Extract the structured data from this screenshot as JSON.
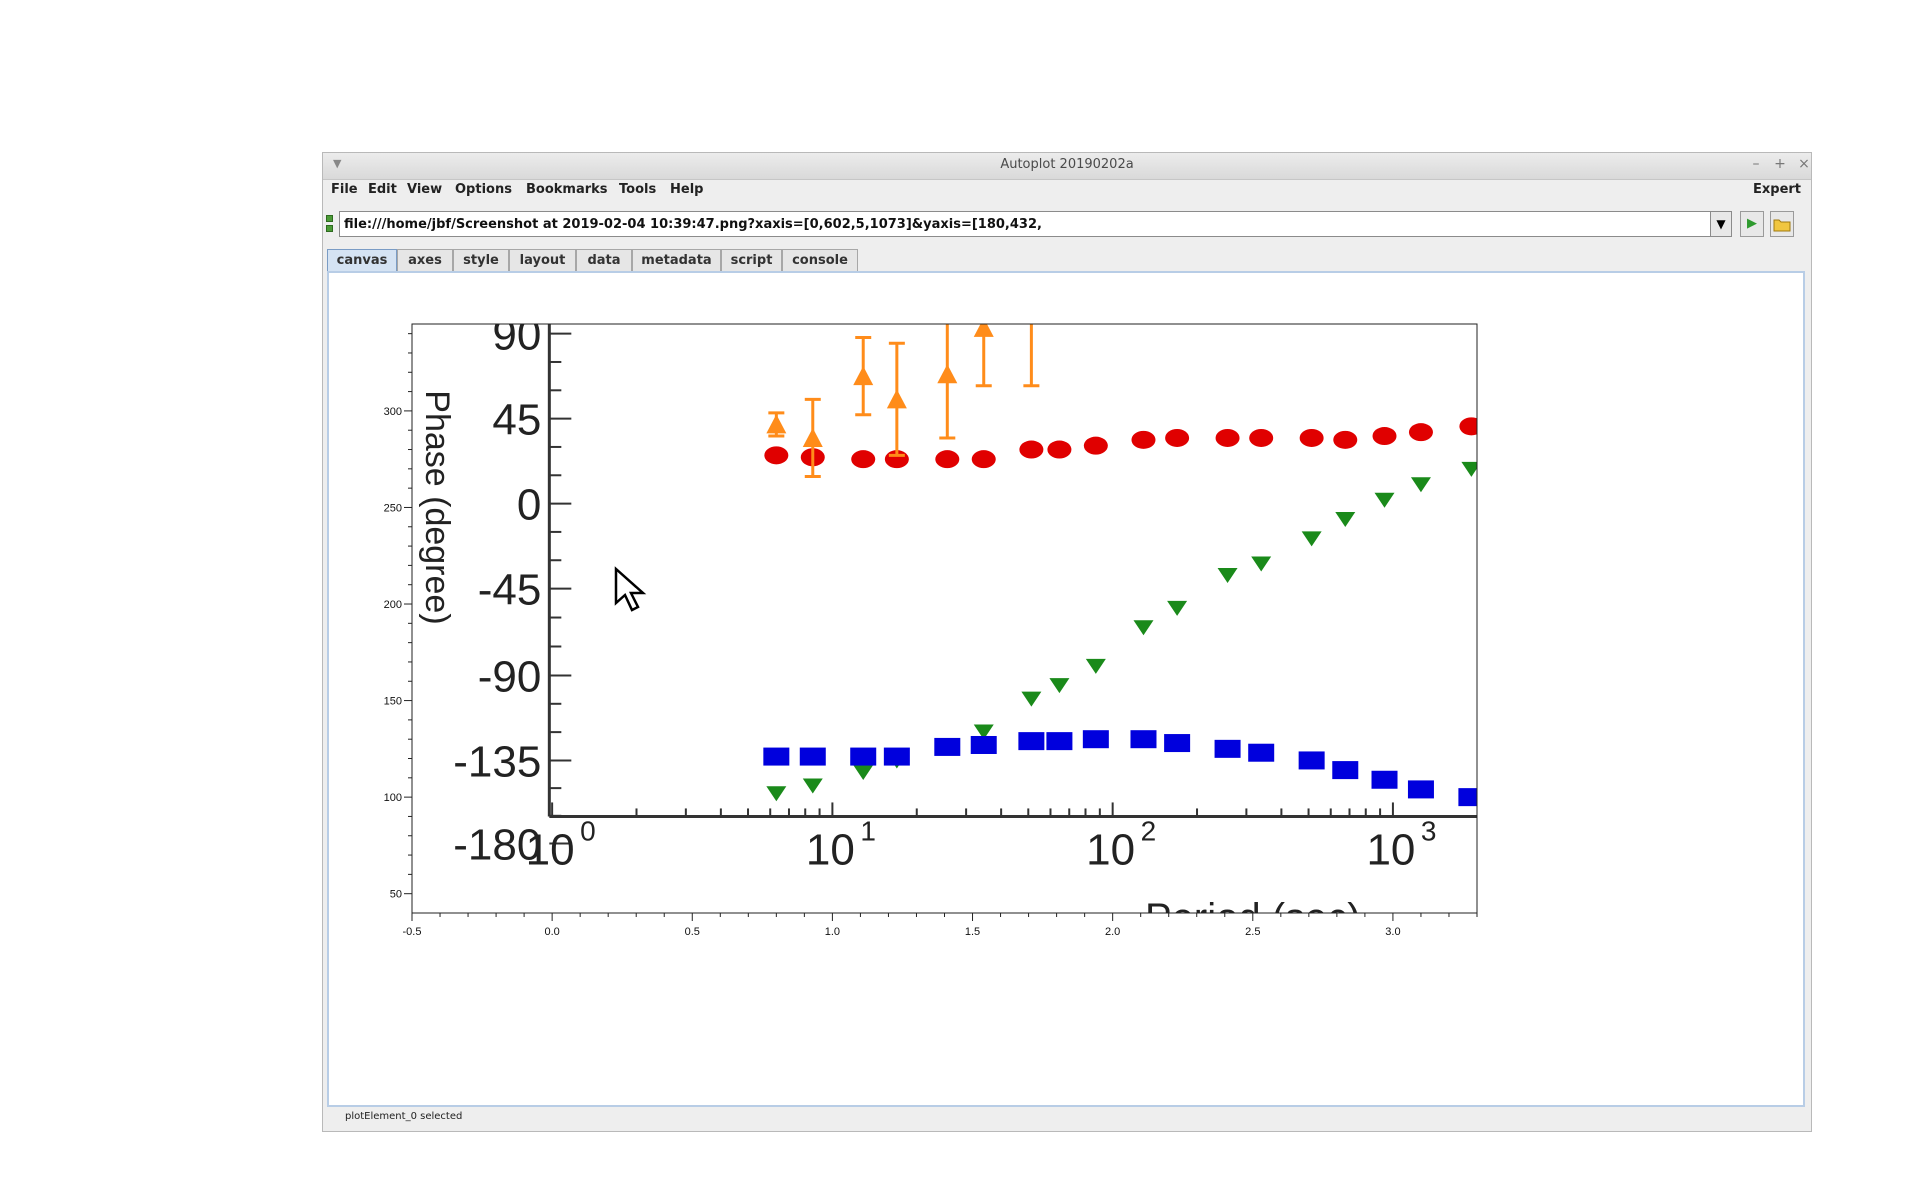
{
  "window": {
    "title": "Autoplot 20190202a"
  },
  "menu": {
    "file": "File",
    "edit": "Edit",
    "view": "View",
    "options": "Options",
    "bookmarks": "Bookmarks",
    "tools": "Tools",
    "help": "Help",
    "expert": "Expert"
  },
  "url": {
    "value": "file:///home/jbf/Screenshot at 2019-02-04 10:39:47.png?xaxis=[0,602,5,1073]&yaxis=[180,432,"
  },
  "tabs": [
    "canvas",
    "axes",
    "style",
    "layout",
    "data",
    "metadata",
    "script",
    "console"
  ],
  "active_tab": "canvas",
  "status": "plotElement_0 selected",
  "icons": {
    "window_menu": "chevron-down-icon",
    "minimize": "minimize-icon",
    "maximize": "maximize-icon",
    "close": "close-icon",
    "url_dropdown": "dropdown-arrow-icon",
    "go": "play-icon",
    "browse": "folder-icon",
    "cursor": "mouse-pointer-icon"
  },
  "colors": {
    "series_red": "#e00000",
    "series_orange": "#ff8c1a",
    "series_green": "#1a8a1a",
    "series_blue": "#0000dd",
    "tab_active": "#d5e3f3"
  },
  "chart_data": {
    "type": "scatter",
    "x_ticks": [
      "-0.5",
      "0.0",
      "0.5",
      "1.0",
      "1.5",
      "2.0",
      "2.5",
      "3.0"
    ],
    "y_ticks": [
      "50",
      "100",
      "150",
      "200",
      "250",
      "300"
    ],
    "xlim": [
      -0.5,
      3.3
    ],
    "ylim": [
      40,
      345
    ],
    "grid": false,
    "image": {
      "y_ticks": [
        "90",
        "45",
        "0",
        "-45",
        "-90",
        "-135",
        "-180"
      ],
      "x_ticks": [
        "10",
        "10",
        "10",
        "10"
      ],
      "x_tick_exponents": [
        "0",
        "1",
        "2",
        "3"
      ],
      "ylabel": "Phase (degree)",
      "xlabel": "Period (sec)"
    },
    "series": [
      {
        "marker": "circle",
        "color": "#e00000",
        "x": [
          0.8,
          0.93,
          1.11,
          1.23,
          1.41,
          1.54,
          1.71,
          1.81,
          1.94,
          2.11,
          2.23,
          2.41,
          2.53,
          2.71,
          2.83,
          2.97,
          3.1,
          3.28
        ],
        "y": [
          277,
          276,
          275,
          275,
          275,
          275,
          280,
          280,
          282,
          285,
          286,
          286,
          286,
          286,
          285,
          287,
          289,
          292
        ]
      },
      {
        "marker": "triangle-up",
        "color": "#ff8c1a",
        "x": [
          0.8,
          0.93,
          1.11,
          1.23,
          1.41,
          1.54,
          1.71
        ],
        "y": [
          293,
          286,
          318,
          306,
          319,
          343,
          350
        ],
        "yerr": [
          6,
          20,
          20,
          29,
          33,
          30,
          37
        ]
      },
      {
        "marker": "triangle-down",
        "color": "#1a8a1a",
        "x": [
          0.8,
          0.93,
          1.11,
          1.23,
          1.41,
          1.54,
          1.71,
          1.81,
          1.94,
          2.11,
          2.23,
          2.41,
          2.53,
          2.71,
          2.83,
          2.97,
          3.1,
          3.28
        ],
        "y": [
          102,
          106,
          113,
          119,
          127,
          134,
          151,
          158,
          168,
          188,
          198,
          215,
          221,
          234,
          244,
          254,
          262,
          270
        ]
      },
      {
        "marker": "square",
        "color": "#0000dd",
        "x": [
          0.8,
          0.93,
          1.11,
          1.23,
          1.41,
          1.54,
          1.71,
          1.81,
          1.94,
          2.11,
          2.23,
          2.41,
          2.53,
          2.71,
          2.83,
          2.97,
          3.1,
          3.28
        ],
        "y": [
          121,
          121,
          121,
          121,
          126,
          127,
          129,
          129,
          130,
          130,
          128,
          125,
          123,
          119,
          114,
          109,
          104,
          100
        ]
      }
    ]
  }
}
